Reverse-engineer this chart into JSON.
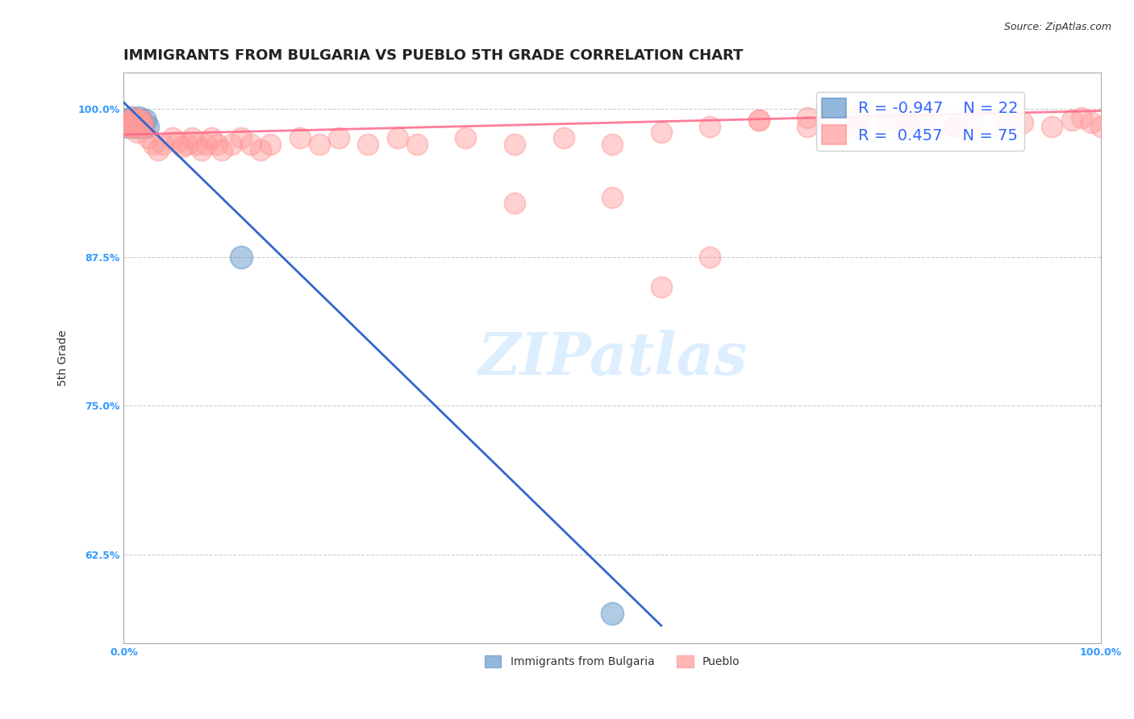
{
  "title": "IMMIGRANTS FROM BULGARIA VS PUEBLO 5TH GRADE CORRELATION CHART",
  "source": "Source: ZipAtlas.com",
  "xlabel": "",
  "ylabel": "5th Grade",
  "xlim": [
    0.0,
    1.0
  ],
  "ylim": [
    0.55,
    1.03
  ],
  "yticks": [
    0.625,
    0.75,
    0.875,
    1.0
  ],
  "ytick_labels": [
    "62.5%",
    "75.0%",
    "87.5%",
    "100.0%"
  ],
  "xticks": [
    0.0,
    1.0
  ],
  "xtick_labels": [
    "0.0%",
    "100.0%"
  ],
  "legend_r1": "R = -0.947",
  "legend_n1": "N = 22",
  "legend_r2": "R =  0.457",
  "legend_n2": "N = 75",
  "color_blue": "#6699CC",
  "color_pink": "#FF9999",
  "blue_scatter": {
    "x": [
      0.003,
      0.004,
      0.005,
      0.006,
      0.007,
      0.008,
      0.009,
      0.01,
      0.011,
      0.012,
      0.013,
      0.014,
      0.015,
      0.016,
      0.017,
      0.018,
      0.019,
      0.02,
      0.022,
      0.024,
      0.12,
      0.5
    ],
    "y": [
      0.99,
      0.985,
      0.99,
      0.988,
      0.99,
      0.992,
      0.988,
      0.985,
      0.99,
      0.988,
      0.985,
      0.99,
      0.992,
      0.988,
      0.985,
      0.99,
      0.988,
      0.985,
      0.99,
      0.985,
      0.875,
      0.575
    ]
  },
  "pink_scatter": {
    "x": [
      0.003,
      0.004,
      0.005,
      0.006,
      0.007,
      0.008,
      0.009,
      0.01,
      0.011,
      0.012,
      0.013,
      0.014,
      0.015,
      0.016,
      0.017,
      0.018,
      0.019,
      0.02,
      0.025,
      0.03,
      0.035,
      0.04,
      0.05,
      0.055,
      0.06,
      0.065,
      0.07,
      0.075,
      0.08,
      0.085,
      0.09,
      0.095,
      0.1,
      0.11,
      0.12,
      0.13,
      0.14,
      0.15,
      0.18,
      0.2,
      0.22,
      0.25,
      0.28,
      0.3,
      0.35,
      0.4,
      0.45,
      0.5,
      0.55,
      0.6,
      0.65,
      0.7,
      0.72,
      0.75,
      0.78,
      0.8,
      0.82,
      0.85,
      0.87,
      0.9,
      0.92,
      0.95,
      0.97,
      0.98,
      0.99,
      1.0,
      0.4,
      0.5,
      0.55,
      0.6,
      0.65,
      0.7,
      0.75,
      0.8,
      0.85
    ],
    "y": [
      0.985,
      0.99,
      0.988,
      0.985,
      0.99,
      0.988,
      0.985,
      0.99,
      0.992,
      0.985,
      0.99,
      0.98,
      0.985,
      0.99,
      0.988,
      0.985,
      0.99,
      0.985,
      0.975,
      0.97,
      0.965,
      0.97,
      0.975,
      0.972,
      0.968,
      0.97,
      0.975,
      0.97,
      0.965,
      0.97,
      0.975,
      0.97,
      0.965,
      0.97,
      0.975,
      0.97,
      0.965,
      0.97,
      0.975,
      0.97,
      0.975,
      0.97,
      0.975,
      0.97,
      0.975,
      0.97,
      0.975,
      0.97,
      0.98,
      0.985,
      0.99,
      0.992,
      0.988,
      0.985,
      0.99,
      0.992,
      0.988,
      0.985,
      0.99,
      0.992,
      0.988,
      0.985,
      0.99,
      0.992,
      0.988,
      0.985,
      0.92,
      0.925,
      0.85,
      0.875,
      0.99,
      0.985,
      0.992,
      0.988,
      0.985
    ]
  },
  "blue_line": {
    "x0": 0.0,
    "y0": 1.005,
    "x1": 0.55,
    "y1": 0.565
  },
  "pink_line": {
    "x0": 0.0,
    "y0": 0.978,
    "x1": 1.0,
    "y1": 0.998
  },
  "watermark": "ZIPatlas",
  "background_color": "#FFFFFF",
  "grid_color": "#CCCCCC",
  "axis_color": "#AAAAAA",
  "title_fontsize": 13,
  "ylabel_fontsize": 10,
  "tick_fontsize": 9,
  "legend_fontsize": 14,
  "source_fontsize": 9,
  "watermark_color": "#DDEEFF",
  "ytick_color": "#3399FF",
  "xtick_color": "#3399FF"
}
